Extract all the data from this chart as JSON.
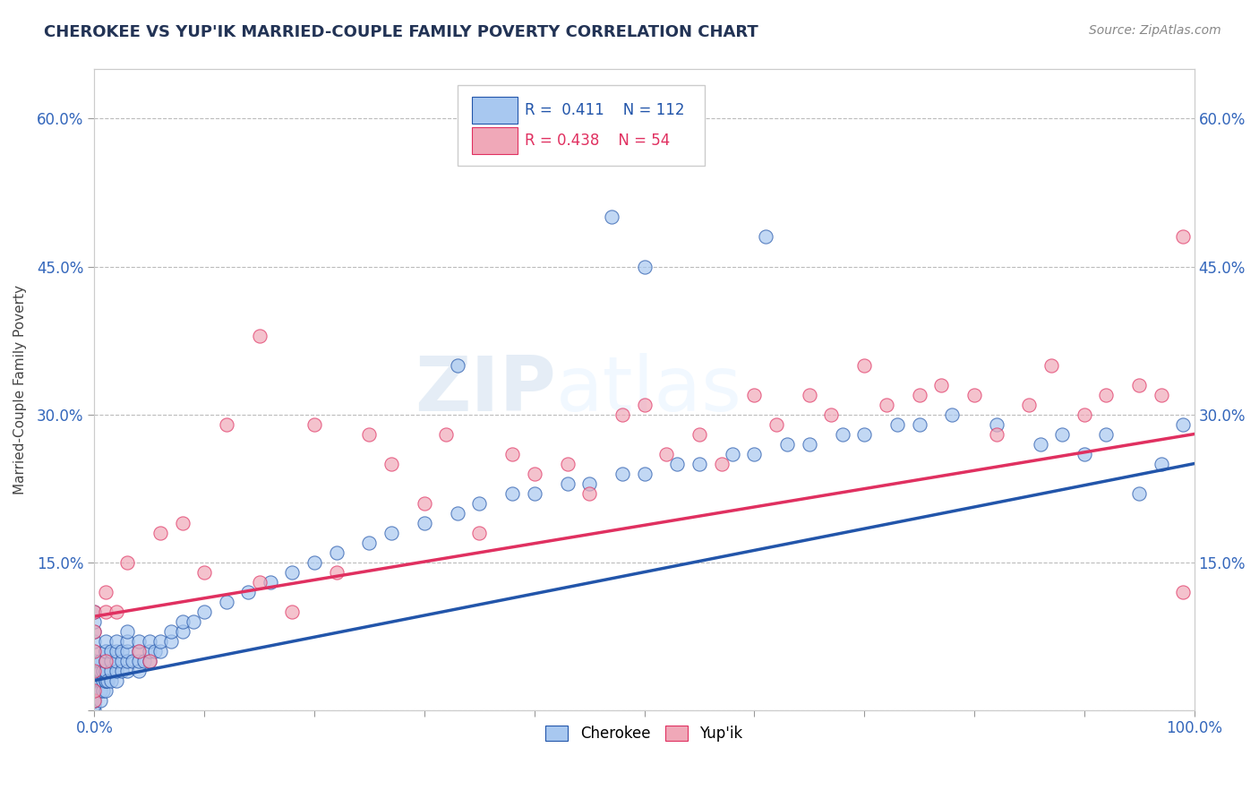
{
  "title": "CHEROKEE VS YUP'IK MARRIED-COUPLE FAMILY POVERTY CORRELATION CHART",
  "source_text": "Source: ZipAtlas.com",
  "ylabel": "Married-Couple Family Poverty",
  "xlim": [
    0,
    1.0
  ],
  "ylim": [
    0,
    0.65
  ],
  "xticks": [
    0.0,
    0.1,
    0.2,
    0.3,
    0.4,
    0.5,
    0.6,
    0.7,
    0.8,
    0.9,
    1.0
  ],
  "xticklabels": [
    "0.0%",
    "",
    "",
    "",
    "",
    "",
    "",
    "",
    "",
    "",
    "100.0%"
  ],
  "yticks": [
    0.0,
    0.15,
    0.3,
    0.45,
    0.6
  ],
  "yticklabels": [
    "",
    "15.0%",
    "30.0%",
    "45.0%",
    "60.0%"
  ],
  "cherokee_color": "#a8c8f0",
  "yupik_color": "#f0a8b8",
  "cherokee_line_color": "#2255aa",
  "yupik_line_color": "#e03060",
  "cherokee_R": 0.411,
  "cherokee_N": 112,
  "yupik_R": 0.438,
  "yupik_N": 54,
  "watermark_zip": "ZIP",
  "watermark_atlas": "atlas",
  "grid_color": "#bbbbbb",
  "background_color": "#ffffff",
  "title_color": "#223355",
  "tick_color": "#3366bb",
  "ylabel_color": "#444444",
  "cherokee_line_intercept": 0.03,
  "cherokee_line_slope": 0.22,
  "yupik_line_intercept": 0.095,
  "yupik_line_slope": 0.185,
  "cherokee_x": [
    0.0,
    0.0,
    0.0,
    0.0,
    0.0,
    0.0,
    0.0,
    0.0,
    0.0,
    0.0,
    0.0,
    0.0,
    0.0,
    0.0,
    0.0,
    0.0,
    0.0,
    0.0,
    0.005,
    0.005,
    0.005,
    0.005,
    0.005,
    0.008,
    0.008,
    0.008,
    0.01,
    0.01,
    0.01,
    0.01,
    0.01,
    0.01,
    0.01,
    0.01,
    0.01,
    0.01,
    0.012,
    0.015,
    0.015,
    0.015,
    0.015,
    0.02,
    0.02,
    0.02,
    0.02,
    0.02,
    0.025,
    0.025,
    0.025,
    0.03,
    0.03,
    0.03,
    0.03,
    0.03,
    0.035,
    0.04,
    0.04,
    0.04,
    0.04,
    0.045,
    0.05,
    0.05,
    0.05,
    0.055,
    0.06,
    0.06,
    0.07,
    0.07,
    0.08,
    0.08,
    0.09,
    0.1,
    0.12,
    0.14,
    0.16,
    0.18,
    0.2,
    0.22,
    0.25,
    0.27,
    0.3,
    0.33,
    0.35,
    0.38,
    0.4,
    0.43,
    0.45,
    0.48,
    0.5,
    0.53,
    0.55,
    0.58,
    0.6,
    0.63,
    0.65,
    0.68,
    0.7,
    0.73,
    0.75,
    0.33,
    0.47,
    0.5,
    0.61,
    0.78,
    0.82,
    0.86,
    0.88,
    0.9,
    0.92,
    0.95,
    0.97,
    0.99
  ],
  "cherokee_y": [
    0.0,
    0.005,
    0.01,
    0.01,
    0.02,
    0.02,
    0.02,
    0.03,
    0.03,
    0.04,
    0.04,
    0.05,
    0.05,
    0.06,
    0.07,
    0.08,
    0.09,
    0.1,
    0.01,
    0.02,
    0.03,
    0.04,
    0.05,
    0.02,
    0.03,
    0.04,
    0.02,
    0.03,
    0.03,
    0.04,
    0.04,
    0.05,
    0.05,
    0.06,
    0.06,
    0.07,
    0.03,
    0.03,
    0.04,
    0.05,
    0.06,
    0.03,
    0.04,
    0.05,
    0.06,
    0.07,
    0.04,
    0.05,
    0.06,
    0.04,
    0.05,
    0.06,
    0.07,
    0.08,
    0.05,
    0.04,
    0.05,
    0.06,
    0.07,
    0.05,
    0.05,
    0.06,
    0.07,
    0.06,
    0.06,
    0.07,
    0.07,
    0.08,
    0.08,
    0.09,
    0.09,
    0.1,
    0.11,
    0.12,
    0.13,
    0.14,
    0.15,
    0.16,
    0.17,
    0.18,
    0.19,
    0.2,
    0.21,
    0.22,
    0.22,
    0.23,
    0.23,
    0.24,
    0.24,
    0.25,
    0.25,
    0.26,
    0.26,
    0.27,
    0.27,
    0.28,
    0.28,
    0.29,
    0.29,
    0.35,
    0.5,
    0.45,
    0.48,
    0.3,
    0.29,
    0.27,
    0.28,
    0.26,
    0.28,
    0.22,
    0.25,
    0.29
  ],
  "yupik_x": [
    0.0,
    0.0,
    0.0,
    0.0,
    0.0,
    0.0,
    0.01,
    0.01,
    0.01,
    0.02,
    0.03,
    0.04,
    0.05,
    0.06,
    0.08,
    0.1,
    0.12,
    0.15,
    0.18,
    0.2,
    0.22,
    0.25,
    0.27,
    0.3,
    0.32,
    0.35,
    0.38,
    0.4,
    0.43,
    0.45,
    0.48,
    0.5,
    0.52,
    0.55,
    0.57,
    0.6,
    0.62,
    0.65,
    0.67,
    0.7,
    0.72,
    0.75,
    0.77,
    0.8,
    0.82,
    0.85,
    0.87,
    0.9,
    0.92,
    0.95,
    0.97,
    0.99,
    0.99,
    0.15
  ],
  "yupik_y": [
    0.01,
    0.02,
    0.04,
    0.06,
    0.08,
    0.1,
    0.05,
    0.1,
    0.12,
    0.1,
    0.15,
    0.06,
    0.05,
    0.18,
    0.19,
    0.14,
    0.29,
    0.13,
    0.1,
    0.29,
    0.14,
    0.28,
    0.25,
    0.21,
    0.28,
    0.18,
    0.26,
    0.24,
    0.25,
    0.22,
    0.3,
    0.31,
    0.26,
    0.28,
    0.25,
    0.32,
    0.29,
    0.32,
    0.3,
    0.35,
    0.31,
    0.32,
    0.33,
    0.32,
    0.28,
    0.31,
    0.35,
    0.3,
    0.32,
    0.33,
    0.32,
    0.48,
    0.12,
    0.38
  ]
}
